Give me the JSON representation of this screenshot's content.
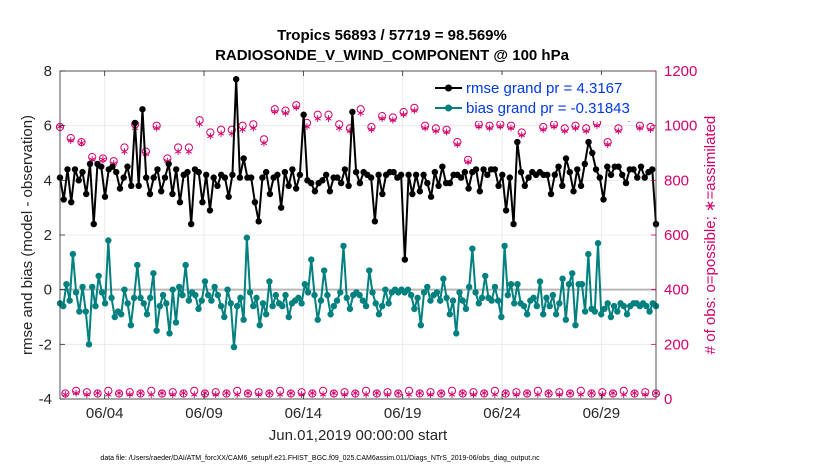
{
  "chart_data": {
    "type": "line",
    "title_line1": "Tropics 56893 / 57719 = 98.569%",
    "title_line2": "RADIOSONDE_V_WIND_COMPONENT @ 100 hPa",
    "xlabel": "Jun.01,2019 00:00:00 start",
    "ylabel_left": "rmse and bias (model - observation)",
    "ylabel_right": "# of obs: o=possible; ∗=assimilated",
    "footer": "data file: /Users/raeder/DAI/ATM_forcXX/CAM6_setup/f.e21.FHIST_BGC.f09_025.CAM6assim.011/Diags_NTrS_2019-06/obs_diag_output.nc",
    "x_day_range": [
      0.75,
      30.75
    ],
    "x_ticks": [
      {
        "day": 3,
        "label": "06/04"
      },
      {
        "day": 8,
        "label": "06/09"
      },
      {
        "day": 13,
        "label": "06/14"
      },
      {
        "day": 18,
        "label": "06/19"
      },
      {
        "day": 23,
        "label": "06/24"
      },
      {
        "day": 28,
        "label": "06/29"
      }
    ],
    "ylim_left": [
      -4,
      8
    ],
    "yticks_left": [
      "-4",
      "-2",
      "0",
      "2",
      "4",
      "6",
      "8"
    ],
    "ylim_right": [
      0,
      1200
    ],
    "yticks_right": [
      "0",
      "200",
      "400",
      "600",
      "800",
      "1000",
      "1200"
    ],
    "colors": {
      "rmse": "#000000",
      "bias": "#00807f",
      "obs": "#d4006a",
      "zero_line": "#b8b8b8",
      "legend_text": "#0039e6"
    },
    "series": [
      {
        "name": "rmse grand pr = 4.3167",
        "axis": "left",
        "values": [
          4.1,
          3.3,
          4.4,
          3.2,
          4.4,
          4.0,
          4.3,
          3.5,
          4.6,
          2.4,
          4.6,
          4.5,
          3.4,
          4.4,
          4.5,
          4.3,
          3.7,
          4.1,
          4.5,
          3.8,
          6.1,
          3.8,
          6.6,
          4.1,
          3.5,
          4.1,
          4.4,
          3.6,
          4.1,
          4.6,
          3.5,
          4.4,
          3.2,
          4.2,
          4.3,
          2.4,
          4.4,
          4.3,
          3.2,
          4.2,
          2.9,
          4.1,
          3.8,
          4.2,
          4.1,
          3.4,
          4.2,
          7.7,
          4.1,
          4.8,
          4.1,
          4.1,
          3.2,
          2.5,
          4.1,
          4.3,
          3.5,
          4.1,
          4.2,
          3.0,
          4.3,
          3.8,
          4.4,
          3.7,
          4.2,
          6.4,
          4.0,
          3.9,
          3.6,
          3.9,
          4.0,
          4.2,
          3.6,
          4.1,
          4.1,
          3.9,
          4.4,
          3.8,
          6.5,
          4.3,
          3.9,
          4.3,
          4.2,
          4.1,
          2.5,
          4.2,
          3.5,
          4.2,
          4.3,
          4.3,
          4.1,
          4.2,
          1.1,
          4.2,
          3.5,
          4.2,
          3.6,
          4.2,
          3.9,
          3.4,
          4.3,
          3.8,
          4.5,
          3.9,
          3.9,
          4.2,
          4.2,
          4.1,
          4.3,
          3.7,
          4.3,
          4.4,
          3.6,
          4.4,
          4.2,
          4.4,
          4.4,
          3.8,
          4.2,
          2.9,
          4.1,
          2.4,
          5.4,
          4.3,
          3.8,
          4.1,
          4.3,
          4.2,
          4.3,
          4.2,
          4.2,
          3.5,
          4.2,
          4.5,
          3.8,
          4.8,
          4.3,
          3.6,
          4.4,
          3.8,
          4.6,
          5.4,
          5.0,
          4.4,
          4.1,
          3.3,
          4.5,
          4.2,
          4.5,
          4.5,
          4.2,
          3.9,
          4.4,
          4.4,
          4.1,
          4.5,
          4.1,
          4.3,
          4.4,
          2.4
        ]
      },
      {
        "name": "bias grand pr = -0.31843",
        "axis": "left",
        "values": [
          -0.5,
          -0.6,
          0.2,
          -0.4,
          1.3,
          -0.1,
          -0.8,
          0.1,
          -0.8,
          -2.0,
          0.1,
          -0.6,
          0.5,
          -0.1,
          -0.5,
          1.8,
          -0.3,
          -1.0,
          -0.8,
          -0.9,
          0.0,
          -0.5,
          -1.3,
          -0.3,
          0.9,
          -0.3,
          -0.5,
          -0.9,
          -0.3,
          0.6,
          -1.5,
          -0.6,
          -0.2,
          -0.5,
          -1.6,
          0.0,
          -1.2,
          0.1,
          -0.2,
          0.9,
          -0.4,
          -0.1,
          -0.2,
          -0.7,
          -0.4,
          0.3,
          -0.2,
          -0.4,
          0.1,
          -0.2,
          -0.6,
          -1.0,
          0.0,
          -0.5,
          -2.1,
          -0.6,
          -0.3,
          -1.1,
          1.9,
          -0.1,
          -0.6,
          -0.3,
          -1.3,
          -0.5,
          -0.9,
          0.3,
          -0.6,
          -0.2,
          -0.5,
          -0.6,
          -0.2,
          -1.0,
          -0.5,
          -0.4,
          -0.3,
          -0.5,
          0.2,
          -0.1,
          1.1,
          -0.2,
          -1.1,
          -0.4,
          0.7,
          -0.2,
          -0.9,
          -0.6,
          -0.4,
          -0.1,
          1.6,
          -0.3,
          -0.7,
          -0.2,
          -0.1,
          -0.2,
          -0.4,
          -0.6,
          0.7,
          -0.1,
          -0.5,
          -0.9,
          -0.6,
          0.0,
          -0.5,
          -0.1,
          0.0,
          -0.1,
          0.0,
          -0.1,
          0.0,
          -0.2,
          -0.7,
          -0.3,
          -1.3,
          -0.1,
          0.1,
          -0.4,
          -0.2,
          -0.1,
          -0.4,
          0.4,
          -0.3,
          -0.9,
          -0.4,
          -1.6,
          -0.1,
          -0.4,
          -0.7,
          0.1,
          1.5,
          -0.1,
          -0.5,
          -0.3,
          0.5,
          -0.3,
          -0.4,
          0.1,
          -0.4,
          -1.0,
          1.6,
          -0.2,
          0.2,
          -0.5,
          0.2,
          -0.5,
          -0.6,
          -0.9,
          -0.4,
          -0.3,
          -0.6,
          0.3,
          -0.9,
          -0.3,
          -0.6,
          -0.2,
          -0.9,
          -0.5,
          0.4,
          -1.1,
          0.2,
          0.6,
          -1.3,
          0.2,
          0.2,
          -0.8,
          1.3,
          -0.7,
          -0.8,
          1.7,
          -0.9,
          -0.7,
          -0.5,
          -1.0,
          -0.6,
          -0.8,
          -0.5,
          -0.6,
          -0.9,
          -0.6,
          -0.5,
          -0.5,
          -0.6,
          -0.5,
          -0.6,
          -0.8,
          -0.5,
          -0.6
        ]
      },
      {
        "name": "possible",
        "axis": "right",
        "marker": "o",
        "values": [
          995,
          20,
          955,
          30,
          940,
          25,
          885,
          20,
          880,
          30,
          870,
          20,
          920,
          25,
          1005,
          20,
          905,
          30,
          1000,
          20,
          880,
          25,
          920,
          20,
          920,
          30,
          1020,
          20,
          975,
          25,
          985,
          20,
          985,
          30,
          1000,
          20,
          1005,
          25,
          950,
          20,
          1060,
          30,
          1055,
          20,
          1075,
          25,
          1010,
          20,
          1040,
          30,
          1040,
          20,
          1005,
          25,
          990,
          20,
          1060,
          30,
          995,
          20,
          1035,
          25,
          1030,
          20,
          1050,
          30,
          1065,
          20,
          1000,
          25,
          990,
          20,
          985,
          30,
          940,
          20,
          875,
          25,
          1005,
          20,
          1000,
          30,
          1005,
          20,
          1000,
          25,
          975,
          20,
          1060,
          30,
          995,
          20,
          1005,
          25,
          990,
          20,
          1000,
          30,
          990,
          20,
          1010,
          25,
          940,
          20,
          990,
          30,
          1035,
          20,
          1000,
          25,
          995,
          20
        ]
      },
      {
        "name": "assimilated",
        "axis": "right",
        "marker": "*",
        "values": [
          1000,
          20,
          950,
          25,
          940,
          20,
          880,
          25,
          880,
          20,
          865,
          25,
          910,
          20,
          995,
          25,
          900,
          20,
          995,
          25,
          875,
          20,
          910,
          25,
          910,
          20,
          1010,
          25,
          965,
          20,
          975,
          25,
          975,
          20,
          990,
          25,
          995,
          20,
          940,
          25,
          1055,
          20,
          1050,
          25,
          1070,
          20,
          1000,
          25,
          1030,
          20,
          1030,
          25,
          995,
          20,
          985,
          25,
          1050,
          20,
          990,
          25,
          1030,
          20,
          1025,
          25,
          1045,
          20,
          1060,
          25,
          995,
          20,
          985,
          25,
          980,
          20,
          935,
          25,
          870,
          20,
          1000,
          25,
          995,
          20,
          1000,
          25,
          995,
          20,
          970,
          25,
          1055,
          20,
          990,
          25,
          1000,
          20,
          985,
          25,
          995,
          20,
          985,
          25,
          1005,
          20,
          935,
          25,
          985,
          20,
          1030,
          25,
          995,
          20,
          990,
          25
        ]
      }
    ],
    "legend_position": "top-right"
  }
}
